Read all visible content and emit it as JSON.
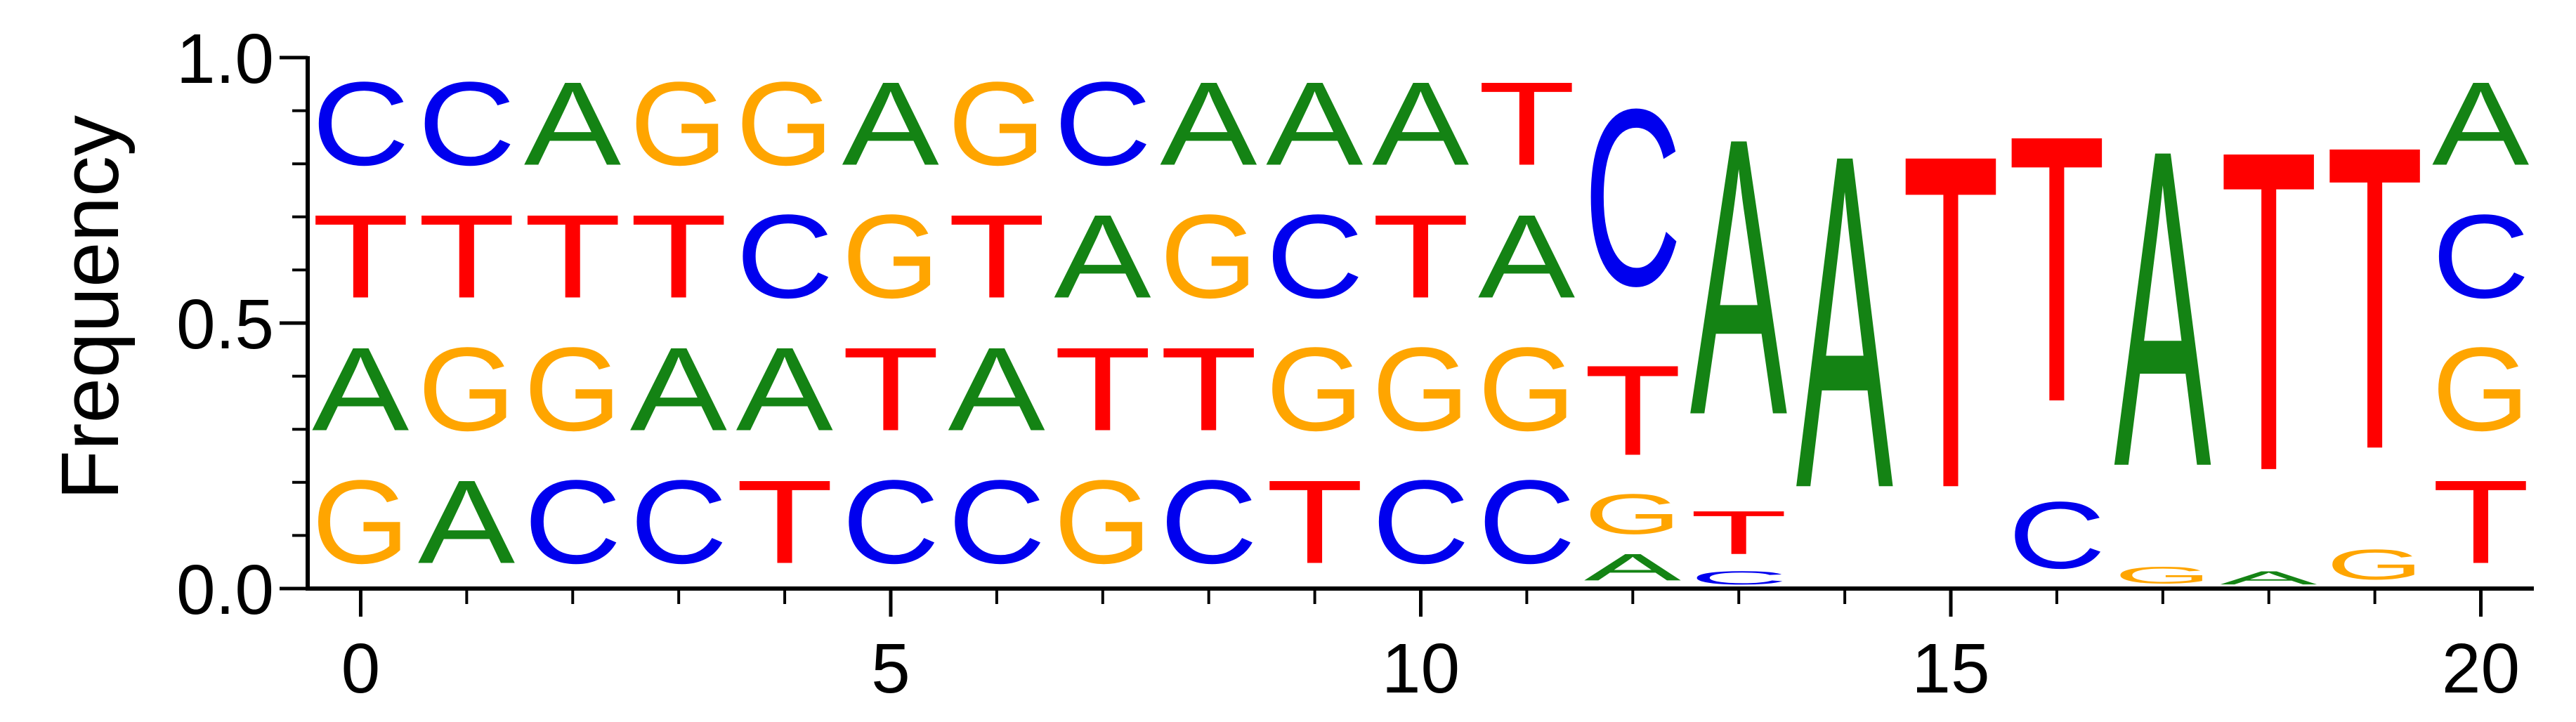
{
  "chart_data": {
    "type": "sequence-logo",
    "ylabel": "Frequency",
    "ylim": [
      0.0,
      1.0
    ],
    "xlim": [
      -0.5,
      20.5
    ],
    "xticks": [
      0,
      5,
      10,
      15,
      20
    ],
    "xticks_minor": [
      1,
      2,
      3,
      4,
      6,
      7,
      8,
      9,
      11,
      12,
      13,
      14,
      16,
      17,
      18,
      19
    ],
    "yticks": [
      0.0,
      0.5,
      1.0
    ],
    "ytick_labels": [
      "0.0",
      "0.5",
      "1.0"
    ],
    "yticks_minor": [
      0.1,
      0.2,
      0.3,
      0.4,
      0.6,
      0.7,
      0.8,
      0.9
    ],
    "colors": {
      "A": "#148314",
      "C": "#0000ee",
      "G": "#ffa500",
      "T": "#ff0000"
    },
    "positions": [
      {
        "x": 0,
        "stack": [
          [
            "G",
            0.25
          ],
          [
            "A",
            0.25
          ],
          [
            "T",
            0.25
          ],
          [
            "C",
            0.25
          ]
        ]
      },
      {
        "x": 1,
        "stack": [
          [
            "A",
            0.25
          ],
          [
            "G",
            0.25
          ],
          [
            "T",
            0.25
          ],
          [
            "C",
            0.25
          ]
        ]
      },
      {
        "x": 2,
        "stack": [
          [
            "C",
            0.25
          ],
          [
            "G",
            0.25
          ],
          [
            "T",
            0.25
          ],
          [
            "A",
            0.25
          ]
        ]
      },
      {
        "x": 3,
        "stack": [
          [
            "C",
            0.25
          ],
          [
            "A",
            0.25
          ],
          [
            "T",
            0.25
          ],
          [
            "G",
            0.25
          ]
        ]
      },
      {
        "x": 4,
        "stack": [
          [
            "T",
            0.25
          ],
          [
            "A",
            0.25
          ],
          [
            "C",
            0.25
          ],
          [
            "G",
            0.25
          ]
        ]
      },
      {
        "x": 5,
        "stack": [
          [
            "C",
            0.25
          ],
          [
            "T",
            0.25
          ],
          [
            "G",
            0.25
          ],
          [
            "A",
            0.25
          ]
        ]
      },
      {
        "x": 6,
        "stack": [
          [
            "C",
            0.25
          ],
          [
            "A",
            0.25
          ],
          [
            "T",
            0.25
          ],
          [
            "G",
            0.25
          ]
        ]
      },
      {
        "x": 7,
        "stack": [
          [
            "G",
            0.25
          ],
          [
            "T",
            0.25
          ],
          [
            "A",
            0.25
          ],
          [
            "C",
            0.25
          ]
        ]
      },
      {
        "x": 8,
        "stack": [
          [
            "C",
            0.25
          ],
          [
            "T",
            0.25
          ],
          [
            "G",
            0.25
          ],
          [
            "A",
            0.25
          ]
        ]
      },
      {
        "x": 9,
        "stack": [
          [
            "T",
            0.25
          ],
          [
            "G",
            0.25
          ],
          [
            "C",
            0.25
          ],
          [
            "A",
            0.25
          ]
        ]
      },
      {
        "x": 10,
        "stack": [
          [
            "C",
            0.25
          ],
          [
            "G",
            0.25
          ],
          [
            "T",
            0.25
          ],
          [
            "A",
            0.25
          ]
        ]
      },
      {
        "x": 11,
        "stack": [
          [
            "C",
            0.25
          ],
          [
            "G",
            0.25
          ],
          [
            "A",
            0.25
          ],
          [
            "T",
            0.25
          ]
        ]
      },
      {
        "x": 12,
        "stack": [
          [
            "A",
            0.08
          ],
          [
            "G",
            0.12
          ],
          [
            "T",
            0.27
          ],
          [
            "C",
            0.53
          ]
        ]
      },
      {
        "x": 13,
        "stack": [
          [
            "C",
            0.04
          ],
          [
            "T",
            0.13
          ],
          [
            "A",
            0.83
          ]
        ]
      },
      {
        "x": 14,
        "stack": [
          [
            "A",
            1.0
          ]
        ]
      },
      {
        "x": 15,
        "stack": [
          [
            "T",
            1.0
          ]
        ]
      },
      {
        "x": 16,
        "stack": [
          [
            "C",
            0.2
          ],
          [
            "T",
            0.8
          ]
        ]
      },
      {
        "x": 17,
        "stack": [
          [
            "G",
            0.05
          ],
          [
            "A",
            0.95
          ]
        ]
      },
      {
        "x": 18,
        "stack": [
          [
            "A",
            0.04
          ],
          [
            "T",
            0.96
          ]
        ]
      },
      {
        "x": 19,
        "stack": [
          [
            "G",
            0.09
          ],
          [
            "T",
            0.91
          ]
        ]
      },
      {
        "x": 20,
        "stack": [
          [
            "T",
            0.25
          ],
          [
            "G",
            0.25
          ],
          [
            "C",
            0.25
          ],
          [
            "A",
            0.25
          ]
        ]
      }
    ]
  }
}
